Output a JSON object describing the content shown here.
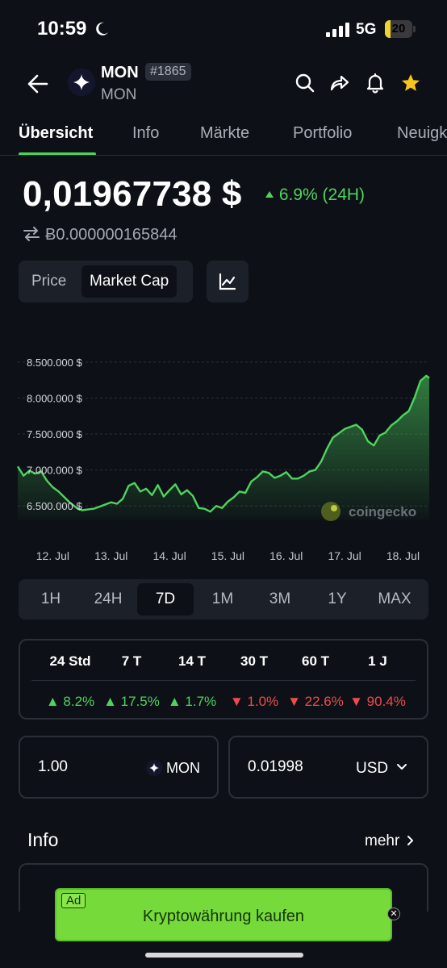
{
  "status": {
    "time": "10:59",
    "network": "5G",
    "battery": "20",
    "battery_fraction": 0.2
  },
  "header": {
    "name": "MON",
    "rank": "#1865",
    "symbol": "MON"
  },
  "tabs": [
    {
      "label": "Übersicht",
      "active": true
    },
    {
      "label": "Info"
    },
    {
      "label": "Märkte"
    },
    {
      "label": "Portfolio"
    },
    {
      "label": "Neuigk"
    }
  ],
  "price": {
    "value": "0,01967738 $",
    "change": "6.9% (24H)",
    "btc": "Ƀ0.000000165844"
  },
  "toggle": {
    "price": "Price",
    "market_cap": "Market Cap",
    "active": "Market Cap"
  },
  "chart_data": {
    "type": "area",
    "y_tick_labels": [
      "8.500.000 $",
      "8.000.000 $",
      "7.500.000 $",
      "7.000.000 $",
      "6.500.000 $"
    ],
    "y_ticks": [
      8500000,
      8000000,
      7500000,
      7000000,
      6500000
    ],
    "x_tick_labels": [
      "12. Jul",
      "13. Jul",
      "14. Jul",
      "15. Jul",
      "16. Jul",
      "17. Jul",
      "18. Jul"
    ],
    "ylim": [
      6300000,
      8600000
    ],
    "xlim": [
      0,
      7.05
    ],
    "grid": true,
    "watermark": "coingecko",
    "color": "#4fd35e",
    "series": [
      {
        "x": [
          0,
          0.1,
          0.2,
          0.3,
          0.4,
          0.5,
          0.6,
          0.7,
          0.8,
          0.9,
          1.0,
          1.1,
          1.2,
          1.3,
          1.4,
          1.5,
          1.6,
          1.7,
          1.8,
          1.9,
          2.0,
          2.1,
          2.2,
          2.3,
          2.4,
          2.5,
          2.6,
          2.7,
          2.8,
          2.9,
          3.0,
          3.1,
          3.2,
          3.3,
          3.4,
          3.5,
          3.6,
          3.7,
          3.8,
          3.9,
          4.0,
          4.1,
          4.2,
          4.3,
          4.4,
          4.5,
          4.6,
          4.7,
          4.8,
          4.9,
          5.0,
          5.1,
          5.2,
          5.3,
          5.4,
          5.5,
          5.6,
          5.7,
          5.8,
          5.9,
          6.0,
          6.1,
          6.2,
          6.3,
          6.4,
          6.5,
          6.6,
          6.7,
          6.8,
          6.9,
          7.0,
          7.05
        ],
        "y": [
          7050000,
          6920000,
          6990000,
          6950000,
          6980000,
          6850000,
          6760000,
          6700000,
          6620000,
          6540000,
          6480000,
          6440000,
          6450000,
          6460000,
          6490000,
          6520000,
          6550000,
          6530000,
          6600000,
          6780000,
          6820000,
          6700000,
          6740000,
          6650000,
          6790000,
          6630000,
          6720000,
          6800000,
          6660000,
          6720000,
          6640000,
          6470000,
          6460000,
          6420000,
          6500000,
          6470000,
          6560000,
          6620000,
          6700000,
          6680000,
          6840000,
          6900000,
          6980000,
          6960000,
          6890000,
          6920000,
          6970000,
          6880000,
          6880000,
          6920000,
          6980000,
          7000000,
          7120000,
          7300000,
          7450000,
          7510000,
          7570000,
          7600000,
          7630000,
          7560000,
          7400000,
          7340000,
          7480000,
          7520000,
          7620000,
          7680000,
          7760000,
          7820000,
          8010000,
          8240000,
          8310000,
          8280000
        ]
      }
    ]
  },
  "ranges": {
    "items": [
      "1H",
      "24H",
      "7D",
      "1M",
      "3M",
      "1Y",
      "MAX"
    ],
    "active": "7D"
  },
  "performance": [
    {
      "label": "24 Std",
      "value": "8.2%",
      "dir": "up"
    },
    {
      "label": "7 T",
      "value": "17.5%",
      "dir": "up"
    },
    {
      "label": "14 T",
      "value": "1.7%",
      "dir": "up"
    },
    {
      "label": "30 T",
      "value": "1.0%",
      "dir": "down"
    },
    {
      "label": "60 T",
      "value": "22.6%",
      "dir": "down"
    },
    {
      "label": "1 J",
      "value": "90.4%",
      "dir": "down"
    }
  ],
  "converter": {
    "from_value": "1.00",
    "from_unit": "MON",
    "to_value": "0.01998",
    "to_unit": "USD"
  },
  "info": {
    "title": "Info",
    "more": "mehr"
  },
  "ad": {
    "tag": "Ad",
    "text": "Kryptowährung kaufen"
  },
  "colors": {
    "up": "#4fd35e",
    "down": "#f04b4b",
    "background": "#0d1117",
    "ad": "#76db3a"
  }
}
